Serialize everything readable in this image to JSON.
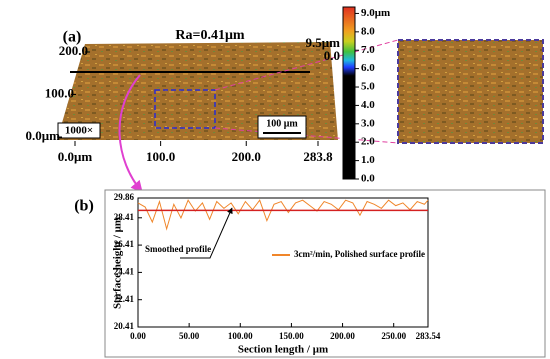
{
  "chart_data": [
    {
      "type": "surface",
      "label": "(a)",
      "title": "Ra=0.41μm",
      "xlim": [
        0,
        283.8
      ],
      "ylim": [
        0,
        200
      ],
      "zlim": [
        0,
        9.5
      ],
      "xticks": [
        {
          "value": 0,
          "label": "0.0μm"
        },
        {
          "value": 100,
          "label": "100.0"
        },
        {
          "value": 200,
          "label": "200.0"
        },
        283.8
      ],
      "yticks": [
        {
          "value": 0,
          "label": "0.0μm"
        },
        {
          "value": 100,
          "label": "100.0"
        },
        {
          "value": 200,
          "label": "200.0"
        }
      ],
      "zticks": [
        {
          "value": 9.5,
          "label": "9.5μm"
        },
        {
          "value": 0,
          "label": "0.0"
        }
      ],
      "colorbar_lim": [
        0,
        9.35
      ],
      "colorbar_ticks": [
        {
          "value": 9,
          "label": "9.0μm"
        },
        {
          "value": 8,
          "label": "8.0"
        },
        {
          "value": 7,
          "label": "7.0"
        },
        {
          "value": 6,
          "label": "6.0"
        },
        {
          "value": 5,
          "label": "5.0"
        },
        {
          "value": 4,
          "label": "4.0"
        },
        {
          "value": 3,
          "label": "3.0"
        },
        {
          "value": 2,
          "label": "2.0"
        },
        {
          "value": 1,
          "label": "1.0"
        },
        {
          "value": 0,
          "label": "0.0"
        }
      ],
      "magnification": "1000×",
      "scale_bar": "100 μm"
    },
    {
      "type": "line",
      "label": "(b)",
      "x_label": "Section length / μm",
      "y_label": "Surface height / μm",
      "xlim": [
        0,
        283.54
      ],
      "ylim": [
        20.41,
        29.86
      ],
      "xticks": [
        {
          "value": 0,
          "label": "0.00"
        },
        {
          "value": 50,
          "label": "50.00"
        },
        {
          "value": 100,
          "label": "100.00"
        },
        {
          "value": 150,
          "label": "150.00"
        },
        {
          "value": 200,
          "label": "200.00"
        },
        {
          "value": 250,
          "label": "250.00"
        },
        283.54
      ],
      "yticks": [
        20.41,
        22.41,
        24.41,
        26.41,
        28.41,
        29.86
      ],
      "x": [
        0,
        7,
        14,
        21,
        28,
        35,
        42,
        49,
        56,
        63,
        70,
        77,
        84,
        91,
        98,
        105,
        112,
        119,
        126,
        133,
        140,
        147,
        154,
        161,
        168,
        175,
        182,
        189,
        196,
        203,
        210,
        217,
        224,
        231,
        238,
        245,
        252,
        259,
        266,
        273,
        280,
        283.54
      ],
      "series": [
        {
          "name": "3cm²/min, Polished surface profile",
          "color": "#f0862a",
          "values": [
            29.5,
            29.2,
            28.1,
            29.6,
            27.6,
            29.4,
            28.4,
            29.7,
            28.9,
            29.5,
            28.3,
            29.6,
            29.1,
            29.5,
            28.7,
            29.6,
            29.0,
            29.7,
            28.2,
            29.4,
            29.6,
            28.8,
            29.5,
            29.7,
            29.3,
            28.9,
            29.6,
            29.4,
            29.0,
            29.7,
            29.5,
            28.6,
            29.6,
            29.4,
            29.1,
            29.7,
            29.3,
            29.5,
            29.0,
            29.6,
            29.4,
            29.7
          ]
        },
        {
          "name": "Smoothed profile",
          "color": "#d42020",
          "values": [
            28.95,
            28.95,
            28.95,
            28.95,
            28.95,
            28.95,
            28.95,
            28.95,
            28.95,
            28.95,
            28.95,
            28.95,
            28.95,
            28.95,
            28.95,
            28.95,
            28.95,
            28.95,
            28.95,
            28.95,
            28.95,
            28.95,
            28.95,
            28.95,
            28.95,
            28.95,
            28.95,
            28.95,
            28.95,
            28.95,
            28.95,
            28.95,
            28.95,
            28.95,
            28.95,
            28.95,
            28.95,
            28.95,
            28.95,
            28.95,
            28.95,
            28.95
          ]
        }
      ]
    }
  ]
}
